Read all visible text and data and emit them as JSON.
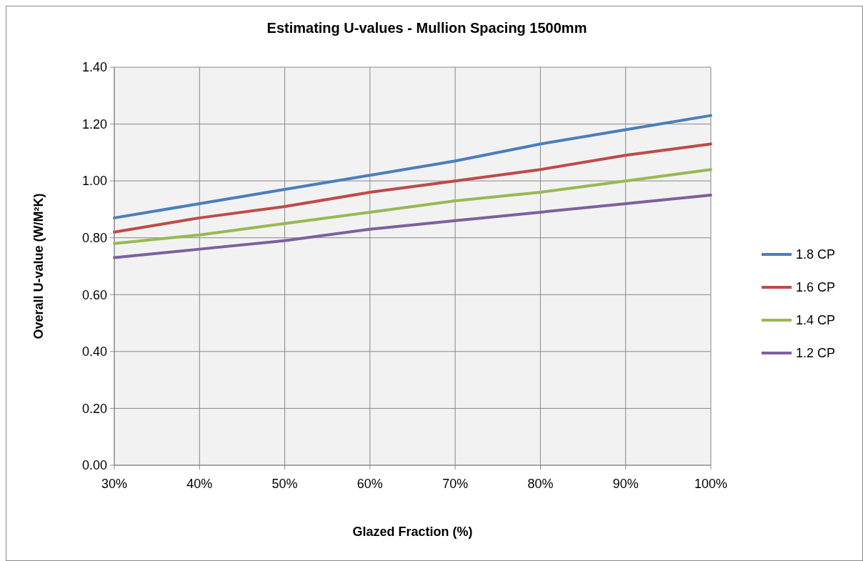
{
  "chart_data": {
    "type": "line",
    "title": "Estimating U-values - Mullion Spacing 1500mm",
    "xlabel": "Glazed Fraction (%)",
    "ylabel": "Overall U-value (W/M²K)",
    "x": [
      30,
      40,
      50,
      60,
      70,
      80,
      90,
      100
    ],
    "series": [
      {
        "name": "1.8 CP",
        "color": "#4a7ebb",
        "values": [
          0.87,
          0.92,
          0.97,
          1.02,
          1.07,
          1.13,
          1.18,
          1.23
        ]
      },
      {
        "name": "1.6 CP",
        "color": "#be4b48",
        "values": [
          0.82,
          0.87,
          0.91,
          0.96,
          1.0,
          1.04,
          1.09,
          1.13
        ]
      },
      {
        "name": "1.4 CP",
        "color": "#98b954",
        "values": [
          0.78,
          0.81,
          0.85,
          0.89,
          0.93,
          0.96,
          1.0,
          1.04
        ]
      },
      {
        "name": "1.2 CP",
        "color": "#7d60a0",
        "values": [
          0.73,
          0.76,
          0.79,
          0.83,
          0.86,
          0.89,
          0.92,
          0.95
        ]
      }
    ],
    "xlim": [
      30,
      100
    ],
    "xticks": [
      {
        "value": 30,
        "label": "30%"
      },
      {
        "value": 40,
        "label": "40%"
      },
      {
        "value": 50,
        "label": "50%"
      },
      {
        "value": 60,
        "label": "60%"
      },
      {
        "value": 70,
        "label": "70%"
      },
      {
        "value": 80,
        "label": "80%"
      },
      {
        "value": 90,
        "label": "90%"
      },
      {
        "value": 100,
        "label": "100%"
      }
    ],
    "ylim": [
      0,
      1.4
    ],
    "yticks": [
      {
        "value": 0,
        "label": "0.00"
      },
      {
        "value": 0.2,
        "label": "0.20"
      },
      {
        "value": 0.4,
        "label": "0.40"
      },
      {
        "value": 0.6,
        "label": "0.60"
      },
      {
        "value": 0.8,
        "label": "0.80"
      },
      {
        "value": 1,
        "label": "1.00"
      },
      {
        "value": 1.2,
        "label": "1.20"
      },
      {
        "value": 1.4,
        "label": "1.40"
      }
    ],
    "grid": true,
    "legend": "right",
    "marker": "none",
    "line_style": "solid"
  }
}
